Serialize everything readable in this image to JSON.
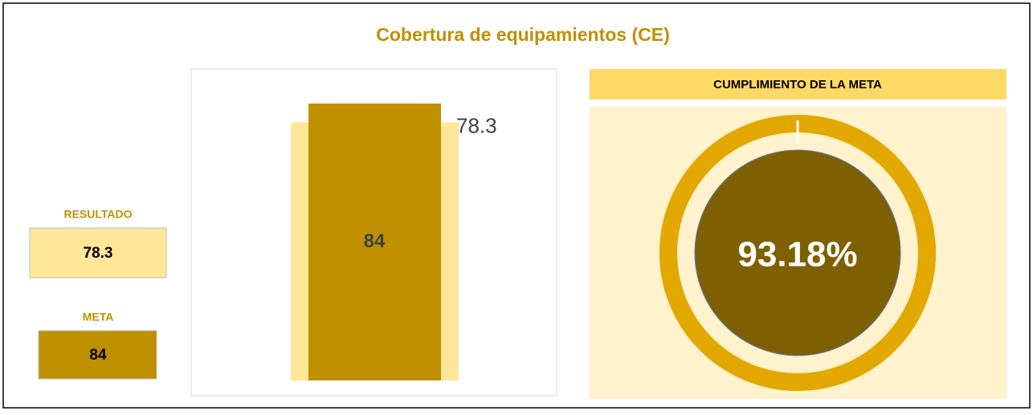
{
  "title": "Cobertura de equipamientos (CE)",
  "resultado": {
    "label": "RESULTADO",
    "value": 78.3
  },
  "meta": {
    "label": "META",
    "value": 84
  },
  "gauge": {
    "title": "CUMPLIMIENTO DE LA META",
    "value": 93.18,
    "value_label": "93.18%"
  }
}
